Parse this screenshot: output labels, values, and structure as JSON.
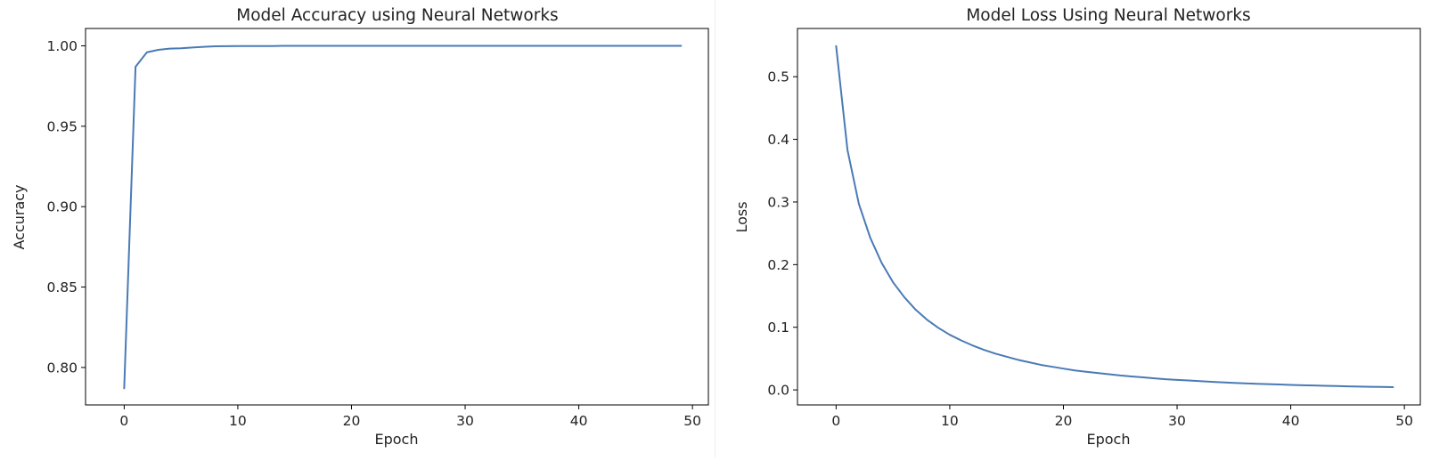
{
  "chart_data": [
    {
      "type": "line",
      "title": "Model Accuracy using Neural Networks",
      "xlabel": "Epoch",
      "ylabel": "Accuracy",
      "xlim": [
        -3.4,
        51.4
      ],
      "ylim": [
        0.7767,
        1.0108
      ],
      "xticks": [
        0,
        10,
        20,
        30,
        40,
        50
      ],
      "xtick_labels": [
        "0",
        "10",
        "20",
        "30",
        "40",
        "50"
      ],
      "yticks": [
        0.8,
        0.85,
        0.9,
        0.95,
        1.0
      ],
      "ytick_labels": [
        "0.80",
        "0.85",
        "0.90",
        "0.95",
        "1.00"
      ],
      "grid": false,
      "color": "#4a7ab5",
      "x": [
        0,
        1,
        2,
        3,
        4,
        5,
        6,
        7,
        8,
        9,
        10,
        11,
        12,
        13,
        14,
        15,
        16,
        17,
        18,
        19,
        20,
        21,
        22,
        23,
        24,
        25,
        26,
        27,
        28,
        29,
        30,
        31,
        32,
        33,
        34,
        35,
        36,
        37,
        38,
        39,
        40,
        41,
        42,
        43,
        44,
        45,
        46,
        47,
        48,
        49
      ],
      "y": [
        0.787,
        0.987,
        0.996,
        0.9975,
        0.9983,
        0.9985,
        0.999,
        0.9994,
        0.9997,
        0.9998,
        0.9999,
        0.9999,
        0.9999,
        0.9999,
        1.0,
        1.0,
        1.0,
        1.0,
        1.0,
        1.0,
        1.0,
        1.0,
        1.0,
        1.0,
        1.0,
        1.0,
        1.0,
        1.0,
        1.0,
        1.0,
        1.0,
        1.0,
        1.0,
        1.0,
        1.0,
        1.0,
        1.0,
        1.0,
        1.0,
        1.0,
        1.0,
        1.0,
        1.0,
        1.0,
        1.0,
        1.0,
        1.0,
        1.0,
        1.0,
        1.0
      ]
    },
    {
      "type": "line",
      "title": "Model Loss Using Neural Networks",
      "xlabel": "Epoch",
      "ylabel": "Loss",
      "xlim": [
        -3.4,
        51.4
      ],
      "ylim": [
        -0.024,
        0.577
      ],
      "xticks": [
        0,
        10,
        20,
        30,
        40,
        50
      ],
      "xtick_labels": [
        "0",
        "10",
        "20",
        "30",
        "40",
        "50"
      ],
      "yticks": [
        0.0,
        0.1,
        0.2,
        0.3,
        0.4,
        0.5
      ],
      "ytick_labels": [
        "0.0",
        "0.1",
        "0.2",
        "0.3",
        "0.4",
        "0.5"
      ],
      "grid": false,
      "color": "#4a7ab5",
      "x": [
        0,
        1,
        2,
        3,
        4,
        5,
        6,
        7,
        8,
        9,
        10,
        11,
        12,
        13,
        14,
        15,
        16,
        17,
        18,
        19,
        20,
        21,
        22,
        23,
        24,
        25,
        26,
        27,
        28,
        29,
        30,
        31,
        32,
        33,
        34,
        35,
        36,
        37,
        38,
        39,
        40,
        41,
        42,
        43,
        44,
        45,
        46,
        47,
        48,
        49
      ],
      "y": [
        0.549,
        0.383,
        0.297,
        0.243,
        0.203,
        0.172,
        0.148,
        0.128,
        0.112,
        0.099,
        0.088,
        0.079,
        0.071,
        0.064,
        0.058,
        0.053,
        0.048,
        0.044,
        0.04,
        0.037,
        0.034,
        0.031,
        0.029,
        0.027,
        0.025,
        0.023,
        0.0215,
        0.02,
        0.0185,
        0.017,
        0.016,
        0.015,
        0.014,
        0.013,
        0.012,
        0.0112,
        0.0105,
        0.0098,
        0.0092,
        0.0086,
        0.008,
        0.0075,
        0.007,
        0.0065,
        0.0061,
        0.0057,
        0.0053,
        0.005,
        0.0047,
        0.0044
      ]
    }
  ]
}
